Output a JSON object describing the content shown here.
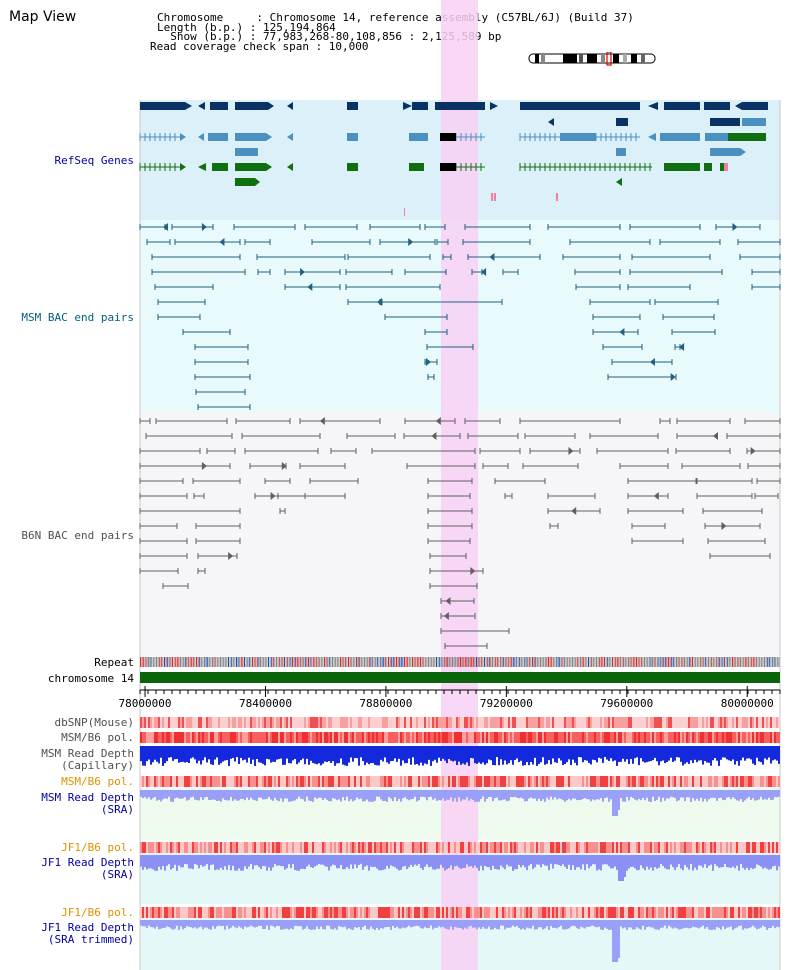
{
  "header": {
    "title": "Map View",
    "info_lines": [
      "Chromosome     : Chromosome 14, reference assembly (C57BL/6J) (Build 37)",
      "Length (b.p.) : 125,194,864",
      "  Show (b.p.) : 77,983,268-80,108,856 : 2,125,589 bp",
      "Read coverage check span : 10,000"
    ]
  },
  "tracks": {
    "refseq_label": "RefSeq Genes",
    "msm_bac_label": "MSM BAC end pairs",
    "b6n_bac_label": "B6N BAC end pairs",
    "repeat_label": "Repeat",
    "chromosome_label": "chromosome 14",
    "dbsnp_label": "dbSNP(Mouse)",
    "msm_b6_pol_label": "MSM/B6 pol.",
    "msm_cap_label_1": "MSM Read Depth",
    "msm_cap_label_2": "(Capillary)",
    "msm_b6_pol2_label": "MSM/B6 pol.",
    "msm_sra_label_1": "MSM Read Depth",
    "msm_sra_label_2": "(SRA)",
    "jf1_pol_label": "JF1/B6 pol.",
    "jf1_sra_label_1": "JF1 Read Depth",
    "jf1_sra_label_2": "(SRA)",
    "jf1_pol2_label": "JF1/B6 pol.",
    "jf1_trim_label_1": "JF1 Read Depth",
    "jf1_trim_label_2": "(SRA trimmed)"
  },
  "axis": {
    "start": 77983268,
    "end": 80108856,
    "ticks": [
      "78000000",
      "78400000",
      "78800000",
      "79200000",
      "79600000",
      "80000000"
    ]
  },
  "colors": {
    "refseq_bg": "#dcf0fa",
    "msm_bg": "#e8fafc",
    "b6n_bg": "#f6f6f8",
    "highlight": "#f8d0f4",
    "gene_dark": "#0a3264",
    "gene_mid": "#4a90c0",
    "gene_green": "#107010",
    "msm_bac": "#206080",
    "b6n_bac": "#606060",
    "chromosome_bar": "#0a640a",
    "label_blue": "#0000a0",
    "label_teal": "#006080",
    "label_gray": "#505050",
    "label_orange": "#e09000"
  }
}
